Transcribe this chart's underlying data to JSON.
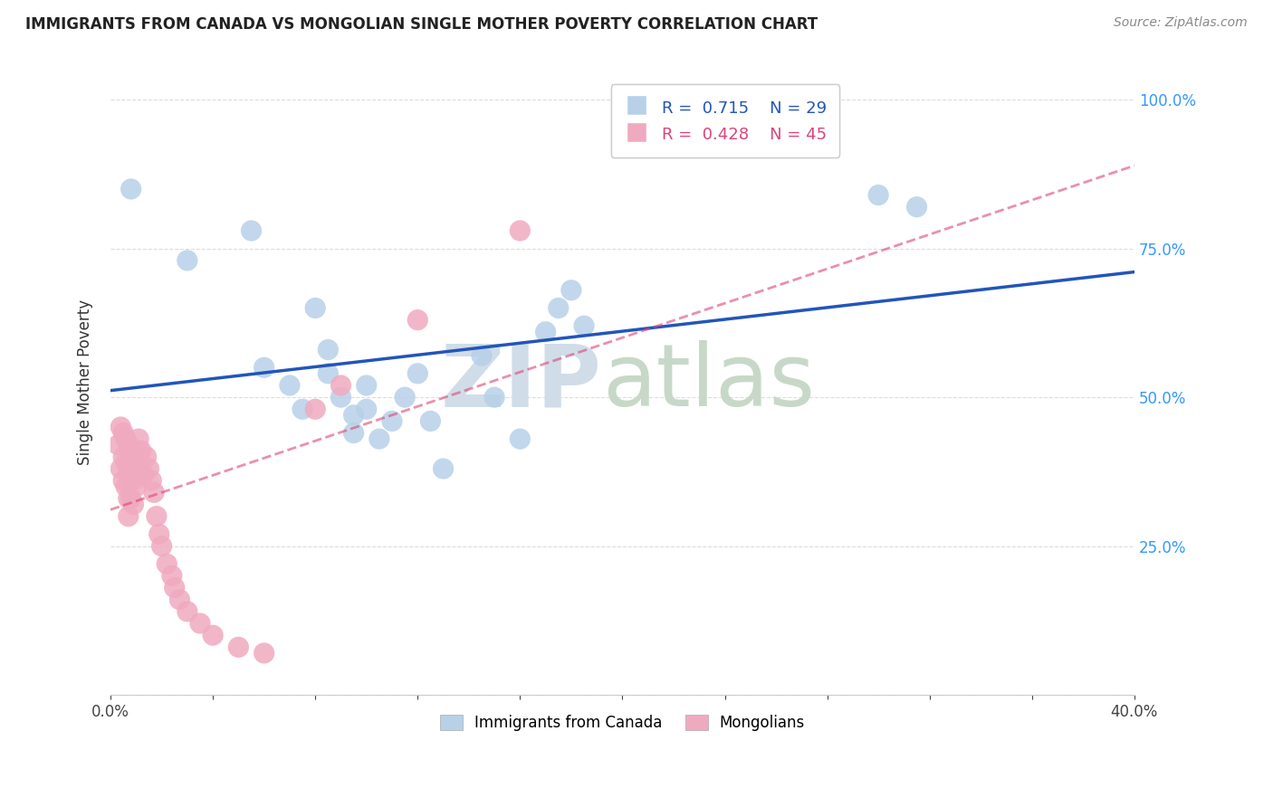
{
  "title": "IMMIGRANTS FROM CANADA VS MONGOLIAN SINGLE MOTHER POVERTY CORRELATION CHART",
  "source": "Source: ZipAtlas.com",
  "ylabel": "Single Mother Poverty",
  "xlim": [
    0.0,
    0.4
  ],
  "ylim": [
    0.0,
    1.05
  ],
  "legend_blue_R": "0.715",
  "legend_blue_N": "29",
  "legend_pink_R": "0.428",
  "legend_pink_N": "45",
  "blue_color": "#b8d0e8",
  "pink_color": "#f0aac0",
  "blue_line_color": "#2255bb",
  "pink_line_color": "#dd4477",
  "blue_scatter": [
    [
      0.008,
      0.85
    ],
    [
      0.03,
      0.73
    ],
    [
      0.055,
      0.78
    ],
    [
      0.06,
      0.55
    ],
    [
      0.07,
      0.52
    ],
    [
      0.075,
      0.48
    ],
    [
      0.08,
      0.65
    ],
    [
      0.085,
      0.58
    ],
    [
      0.085,
      0.54
    ],
    [
      0.09,
      0.5
    ],
    [
      0.095,
      0.47
    ],
    [
      0.095,
      0.44
    ],
    [
      0.1,
      0.52
    ],
    [
      0.1,
      0.48
    ],
    [
      0.105,
      0.43
    ],
    [
      0.11,
      0.46
    ],
    [
      0.115,
      0.5
    ],
    [
      0.12,
      0.54
    ],
    [
      0.125,
      0.46
    ],
    [
      0.13,
      0.38
    ],
    [
      0.145,
      0.57
    ],
    [
      0.15,
      0.5
    ],
    [
      0.16,
      0.43
    ],
    [
      0.17,
      0.61
    ],
    [
      0.175,
      0.65
    ],
    [
      0.18,
      0.68
    ],
    [
      0.185,
      0.62
    ],
    [
      0.3,
      0.84
    ],
    [
      0.315,
      0.82
    ]
  ],
  "pink_scatter": [
    [
      0.003,
      0.42
    ],
    [
      0.004,
      0.45
    ],
    [
      0.004,
      0.38
    ],
    [
      0.005,
      0.44
    ],
    [
      0.005,
      0.4
    ],
    [
      0.005,
      0.36
    ],
    [
      0.006,
      0.43
    ],
    [
      0.006,
      0.39
    ],
    [
      0.006,
      0.35
    ],
    [
      0.007,
      0.42
    ],
    [
      0.007,
      0.37
    ],
    [
      0.007,
      0.33
    ],
    [
      0.007,
      0.3
    ],
    [
      0.008,
      0.41
    ],
    [
      0.008,
      0.38
    ],
    [
      0.008,
      0.33
    ],
    [
      0.009,
      0.4
    ],
    [
      0.009,
      0.36
    ],
    [
      0.009,
      0.32
    ],
    [
      0.01,
      0.39
    ],
    [
      0.01,
      0.35
    ],
    [
      0.011,
      0.43
    ],
    [
      0.011,
      0.38
    ],
    [
      0.012,
      0.41
    ],
    [
      0.013,
      0.37
    ],
    [
      0.014,
      0.4
    ],
    [
      0.015,
      0.38
    ],
    [
      0.016,
      0.36
    ],
    [
      0.017,
      0.34
    ],
    [
      0.018,
      0.3
    ],
    [
      0.019,
      0.27
    ],
    [
      0.02,
      0.25
    ],
    [
      0.022,
      0.22
    ],
    [
      0.024,
      0.2
    ],
    [
      0.025,
      0.18
    ],
    [
      0.027,
      0.16
    ],
    [
      0.03,
      0.14
    ],
    [
      0.035,
      0.12
    ],
    [
      0.04,
      0.1
    ],
    [
      0.05,
      0.08
    ],
    [
      0.06,
      0.07
    ],
    [
      0.08,
      0.48
    ],
    [
      0.09,
      0.52
    ],
    [
      0.12,
      0.63
    ],
    [
      0.16,
      0.78
    ]
  ]
}
